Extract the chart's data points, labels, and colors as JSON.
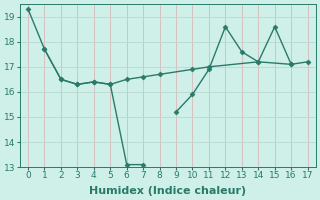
{
  "line1_x": [
    0,
    1,
    2,
    3,
    4,
    5,
    6,
    7,
    8,
    9,
    10,
    11,
    12,
    13,
    14,
    15,
    16,
    17
  ],
  "line1_y": [
    19.3,
    17.7,
    16.5,
    16.3,
    16.4,
    16.3,
    13.1,
    13.1,
    null,
    15.2,
    15.9,
    16.9,
    18.6,
    17.6,
    17.2,
    18.6,
    17.1,
    17.2
  ],
  "line2_x": [
    1,
    2,
    3,
    4,
    5,
    6,
    7,
    8,
    10,
    11,
    14,
    16
  ],
  "line2_y": [
    17.7,
    16.5,
    16.3,
    16.4,
    16.3,
    16.5,
    16.6,
    16.7,
    16.9,
    17.0,
    17.2,
    17.1
  ],
  "line_color": "#2a7a6a",
  "bg_color": "#cef0e8",
  "grid_color_v": "#d8baba",
  "grid_color_h": "#b8d8d0",
  "xlabel": "Humidex (Indice chaleur)",
  "ylim": [
    13,
    19.5
  ],
  "xlim": [
    -0.5,
    17.5
  ],
  "yticks": [
    13,
    14,
    15,
    16,
    17,
    18,
    19
  ],
  "xticks": [
    0,
    1,
    2,
    3,
    4,
    5,
    6,
    7,
    8,
    9,
    10,
    11,
    12,
    13,
    14,
    15,
    16,
    17
  ],
  "marker": "D",
  "markersize": 2.5,
  "linewidth": 1.0,
  "xlabel_fontsize": 8,
  "tick_fontsize": 6.5
}
